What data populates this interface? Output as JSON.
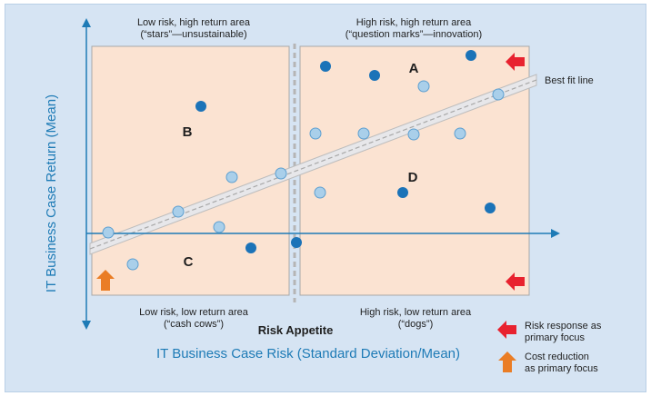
{
  "quadrants": {
    "top_left": {
      "line1": "Low risk, high return area",
      "line2": "(“stars”—unsustainable)"
    },
    "top_right": {
      "line1": "High risk, high return area",
      "line2": "(“question marks”—innovation)"
    },
    "bottom_left": {
      "line1": "Low risk, low return area",
      "line2": "(“cash cows”)"
    },
    "bottom_right": {
      "line1": "High risk, low return area",
      "line2": "(“dogs”)"
    }
  },
  "region_labels": {
    "a": "A",
    "b": "B",
    "c": "C",
    "d": "D"
  },
  "best_fit_label": "Best fit line",
  "risk_appetite_label": "Risk Appetite",
  "axes": {
    "y_title": "IT Business Case Return (Mean)",
    "x_title": "IT Business Case Risk (Standard Deviation/Mean)"
  },
  "legend": {
    "risk_response": {
      "line1": "Risk response as",
      "line2": "primary focus"
    },
    "cost_reduction": {
      "line1": "Cost reduction",
      "line2": "as primary focus"
    }
  },
  "colors": {
    "panel_fill": "#fbe3d2",
    "panel_border": "#a8a8a8",
    "light_dot": "#a9cfea",
    "dark_dot": "#1b73b8",
    "axis": "#1e7bb6",
    "red_arrow": "#e8222f",
    "orange_arrow": "#ea7d25",
    "background": "#d6e4f3"
  },
  "icons": {
    "risk_response": "red-left-arrow",
    "cost_reduction": "orange-up-arrow"
  }
}
